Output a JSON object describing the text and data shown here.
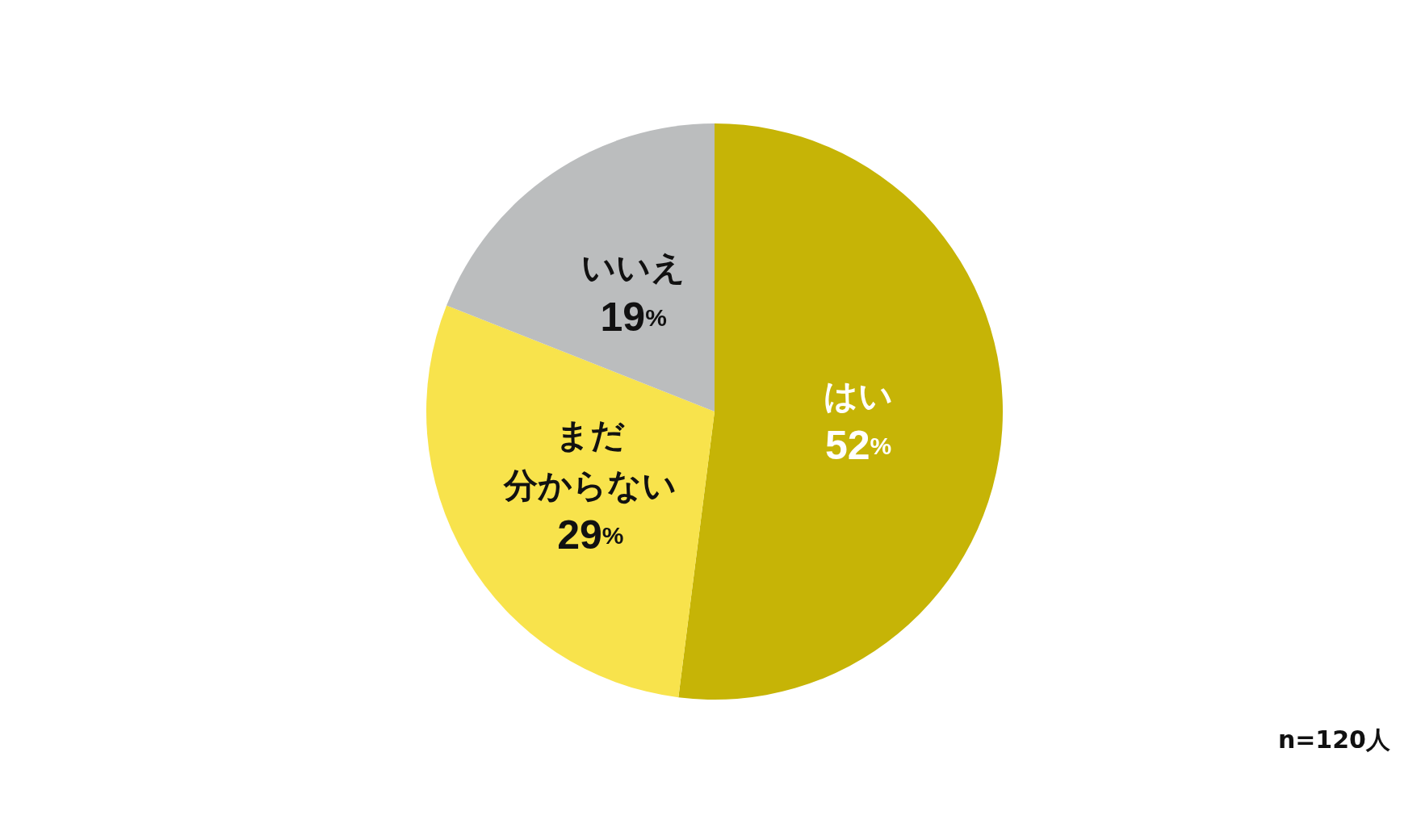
{
  "chart_data": {
    "type": "pie",
    "categories": [
      "はい",
      "まだ分からない",
      "いいえ"
    ],
    "values": [
      52,
      29,
      19
    ],
    "colors": [
      "#c6b406",
      "#f8e34c",
      "#bbbdbe"
    ],
    "value_labels": [
      "52%",
      "29%",
      "19%"
    ],
    "annotations": [
      "n=120人"
    ]
  }
}
